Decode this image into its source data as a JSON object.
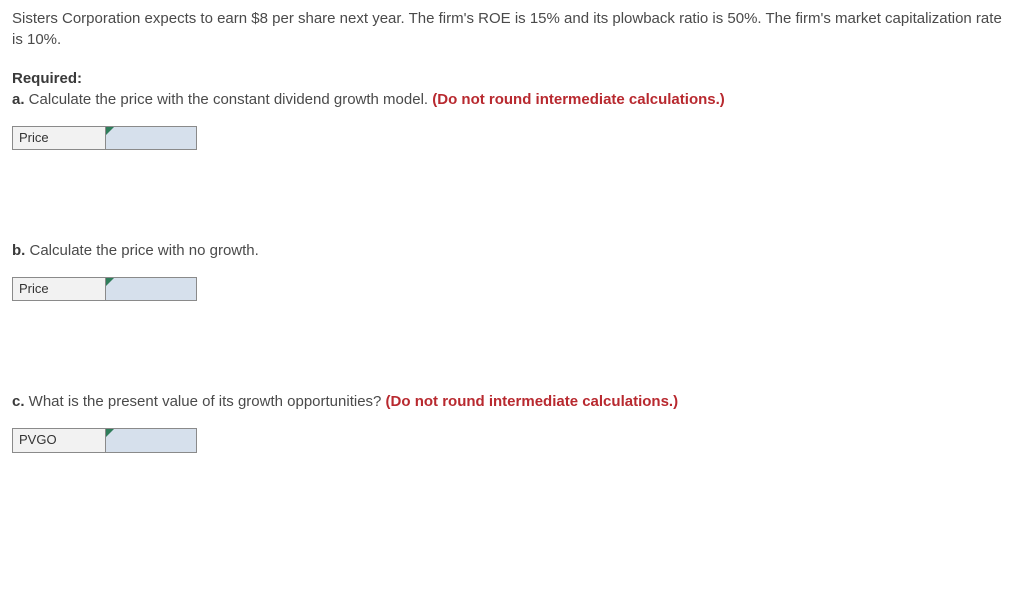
{
  "problem": {
    "intro": "Sisters Corporation expects to earn $8 per share next year. The firm's ROE is 15% and its plowback ratio is 50%. The firm's market capitalization rate is 10%."
  },
  "required_label": "Required:",
  "parts": {
    "a": {
      "label": "a.",
      "text": " Calculate the price with the constant dividend growth model. ",
      "note": "(Do not round intermediate calculations.)",
      "field_label": "Price",
      "field_value": ""
    },
    "b": {
      "label": "b.",
      "text": " Calculate the price with no growth.",
      "note": "",
      "field_label": "Price",
      "field_value": ""
    },
    "c": {
      "label": "c.",
      "text": " What is the present value of its growth opportunities? ",
      "note": "(Do not round intermediate calculations.)",
      "field_label": "PVGO",
      "field_value": ""
    }
  },
  "colors": {
    "text": "#4a4a4a",
    "note_red": "#b8292f",
    "label_bg": "#f2f2f2",
    "input_bg": "#d6e0ec",
    "corner_tab": "#2e7d5a",
    "border": "#8a8a8a"
  }
}
